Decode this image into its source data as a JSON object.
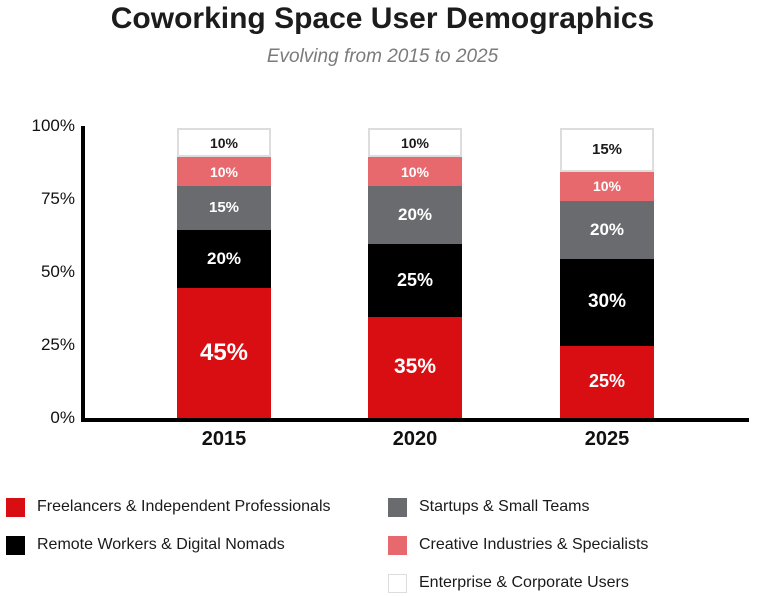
{
  "chart_data": {
    "type": "bar",
    "variant": "stacked",
    "title": "Coworking Space User Demographics",
    "subtitle": "Evolving from 2015 to 2025",
    "categories": [
      "2015",
      "2020",
      "2025"
    ],
    "y_ticks": [
      "0%",
      "25%",
      "50%",
      "75%",
      "100%"
    ],
    "ylim": [
      0,
      100
    ],
    "unit": "%",
    "grid": false,
    "legend_position": "bottom",
    "series": [
      {
        "name": "Freelancers & Independent Professionals",
        "color": "#d80e12",
        "label_color": "#ffffff",
        "values": [
          45,
          35,
          25
        ]
      },
      {
        "name": "Remote Workers & Digital Nomads",
        "color": "#000000",
        "label_color": "#ffffff",
        "values": [
          20,
          25,
          30
        ]
      },
      {
        "name": "Startups & Small Teams",
        "color": "#6a6b6e",
        "label_color": "#ffffff",
        "values": [
          15,
          20,
          20
        ]
      },
      {
        "name": "Creative Industries & Specialists",
        "color": "#e8696d",
        "label_color": "#ffffff",
        "values": [
          10,
          10,
          10
        ]
      },
      {
        "name": "Enterprise & Corporate Users",
        "color": "#ffffff",
        "label_color": "#1a1a1a",
        "border_color": "#dddddd",
        "values": [
          10,
          10,
          15
        ]
      }
    ],
    "segment_labels": [
      [
        "45%",
        "35%",
        "25%"
      ],
      [
        "20%",
        "25%",
        "30%"
      ],
      [
        "15%",
        "20%",
        "20%"
      ],
      [
        "10%",
        "10%",
        "10%"
      ],
      [
        "10%",
        "10%",
        "15%"
      ]
    ],
    "legend_columns": [
      [
        0,
        1
      ],
      [
        2,
        3,
        4
      ]
    ]
  }
}
